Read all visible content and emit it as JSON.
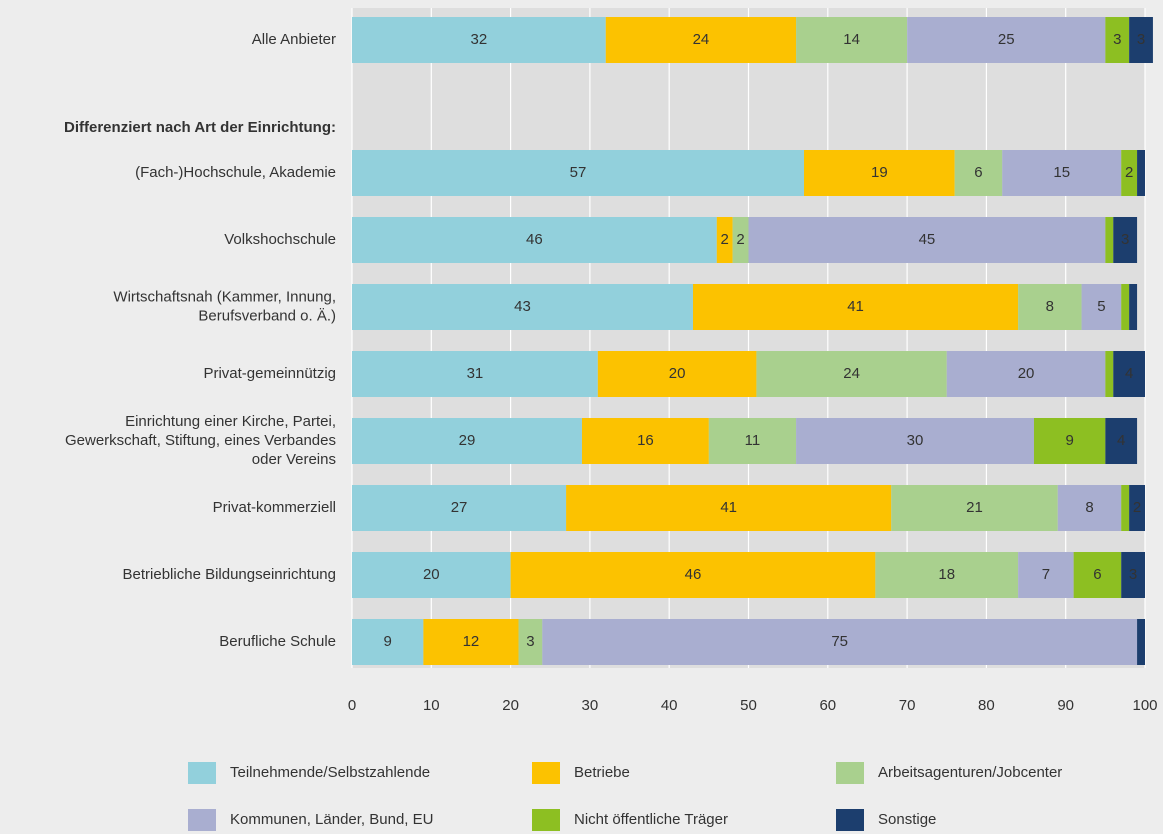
{
  "chart_data": {
    "type": "stacked-bar-horizontal",
    "categories": [
      "Alle Anbieter",
      "(Fach-)Hochschule, Akademie",
      "Volkshochschule",
      "Wirtschaftsnah (Kammer, Innung,\nBerufsverband o. Ä.)",
      "Privat-gemeinnützig",
      "Einrichtung einer Kirche, Partei,\nGewerkschaft, Stiftung, eines Verbandes\noder Vereins",
      "Privat-kommerziell",
      "Betriebliche Bildungseinrichtung",
      "Berufliche Schule"
    ],
    "group_heading": "Differenziert nach Art der Einrichtung:",
    "series": [
      {
        "name": "Teilnehmende/Selbstzahlende",
        "color": "#92d0dc",
        "values": [
          32,
          57,
          46,
          43,
          31,
          29,
          27,
          20,
          9
        ]
      },
      {
        "name": "Betriebe",
        "color": "#fcc200",
        "values": [
          24,
          19,
          2,
          41,
          20,
          16,
          41,
          46,
          12
        ]
      },
      {
        "name": "Arbeitsagenturen/Jobcenter",
        "color": "#a9d08e",
        "values": [
          14,
          6,
          2,
          8,
          24,
          11,
          21,
          18,
          3
        ]
      },
      {
        "name": "Kommunen, Länder, Bund, EU",
        "color": "#a9aed0",
        "values": [
          25,
          15,
          45,
          5,
          20,
          30,
          8,
          7,
          75
        ]
      },
      {
        "name": "Nicht öffentliche Träger",
        "color": "#8dbf22",
        "values": [
          3,
          2,
          1,
          1,
          1,
          9,
          1,
          6,
          null
        ]
      },
      {
        "name": "Sonstige",
        "color": "#1c3e6e",
        "values": [
          3,
          1,
          3,
          1,
          4,
          4,
          2,
          3,
          1
        ]
      }
    ],
    "xlim": [
      0,
      100
    ],
    "xticks": [
      0,
      10,
      20,
      30,
      40,
      50,
      60,
      70,
      80,
      90,
      100
    ],
    "grid": true
  }
}
